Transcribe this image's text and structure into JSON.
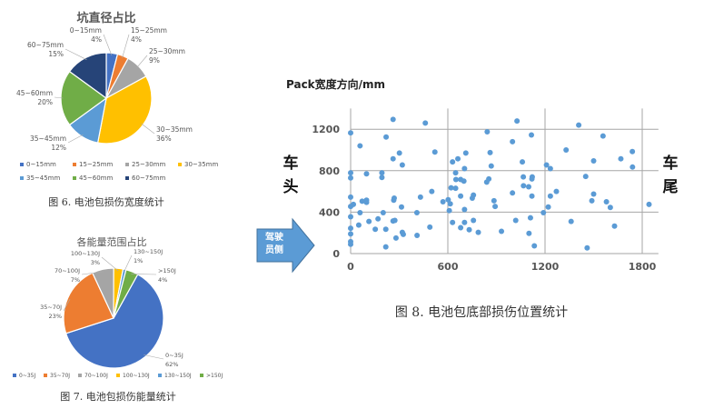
{
  "chart_data": [
    {
      "type": "pie",
      "title": "坑直径占比",
      "caption": "图 6. 电池包损伤宽度统计",
      "categories": [
        "0~15mm",
        "15~25mm",
        "25~30mm",
        "30~35mm",
        "35~45mm",
        "45~60mm",
        "60~75mm"
      ],
      "values": [
        4,
        4,
        9,
        36,
        12,
        20,
        15
      ],
      "value_labels": [
        "4%",
        "4%",
        "9%",
        "36%",
        "12%",
        "20%",
        "15%"
      ],
      "colors": [
        "#4472C4",
        "#ED7D31",
        "#A5A5A5",
        "#FFC000",
        "#5B9BD5",
        "#70AD47",
        "#264478"
      ],
      "legend": "bottom"
    },
    {
      "type": "pie",
      "title": "各能量范围占比",
      "caption": "图 7. 电池包损伤能量统计",
      "categories": [
        "0~35J",
        "35~70J",
        "70~100J",
        "100~130J",
        "130~150J",
        ">150J"
      ],
      "values": [
        62,
        23,
        7,
        3,
        1,
        4
      ],
      "value_labels": [
        "62%",
        "23%",
        "7%",
        "3%",
        "1%",
        "4%"
      ],
      "colors": [
        "#4472C4",
        "#ED7D31",
        "#A5A5A5",
        "#FFC000",
        "#5B9BD5",
        "#70AD47"
      ],
      "legend": "bottom"
    },
    {
      "type": "scatter",
      "ylabel": "Pack宽度方向/mm",
      "caption": "图 8. 电池包底部损伤位置统计",
      "left_label": "车头",
      "right_label": "车尾",
      "arrow_label": "驾驶员侧",
      "xlim": [
        0,
        1900
      ],
      "ylim": [
        0,
        1400
      ],
      "xticks": [
        0,
        600,
        1200,
        1800
      ],
      "yticks": [
        0,
        400,
        800,
        1200
      ],
      "grid": true,
      "color": "#5B9BD5",
      "points": [
        [
          0,
          1165
        ],
        [
          58,
          1040
        ],
        [
          0,
          780
        ],
        [
          0,
          730
        ],
        [
          98,
          770
        ],
        [
          193,
          780
        ],
        [
          193,
          735
        ],
        [
          0,
          545
        ],
        [
          0,
          455
        ],
        [
          17,
          475
        ],
        [
          58,
          395
        ],
        [
          71,
          505
        ],
        [
          98,
          515
        ],
        [
          98,
          495
        ],
        [
          0,
          355
        ],
        [
          0,
          245
        ],
        [
          0,
          190
        ],
        [
          0,
          115
        ],
        [
          0,
          90
        ],
        [
          50,
          275
        ],
        [
          113,
          310
        ],
        [
          169,
          335
        ],
        [
          152,
          235
        ],
        [
          201,
          395
        ],
        [
          217,
          235
        ],
        [
          217,
          65
        ],
        [
          219,
          1125
        ],
        [
          262,
          1295
        ],
        [
          262,
          915
        ],
        [
          301,
          970
        ],
        [
          319,
          855
        ],
        [
          266,
          515
        ],
        [
          269,
          535
        ],
        [
          314,
          450
        ],
        [
          262,
          315
        ],
        [
          273,
          320
        ],
        [
          280,
          150
        ],
        [
          319,
          205
        ],
        [
          325,
          185
        ],
        [
          409,
          395
        ],
        [
          410,
          175
        ],
        [
          431,
          545
        ],
        [
          461,
          1260
        ],
        [
          489,
          255
        ],
        [
          501,
          600
        ],
        [
          520,
          980
        ],
        [
          570,
          500
        ],
        [
          602,
          520
        ],
        [
          615,
          480
        ],
        [
          609,
          415
        ],
        [
          620,
          635
        ],
        [
          629,
          885
        ],
        [
          629,
          300
        ],
        [
          648,
          630
        ],
        [
          662,
          915
        ],
        [
          648,
          780
        ],
        [
          650,
          715
        ],
        [
          679,
          715
        ],
        [
          699,
          700
        ],
        [
          679,
          555
        ],
        [
          711,
          970
        ],
        [
          703,
          820
        ],
        [
          703,
          425
        ],
        [
          703,
          300
        ],
        [
          679,
          250
        ],
        [
          732,
          230
        ],
        [
          751,
          535
        ],
        [
          758,
          565
        ],
        [
          758,
          320
        ],
        [
          788,
          205
        ],
        [
          843,
          1175
        ],
        [
          861,
          975
        ],
        [
          853,
          720
        ],
        [
          840,
          690
        ],
        [
          868,
          845
        ],
        [
          885,
          510
        ],
        [
          892,
          455
        ],
        [
          931,
          215
        ],
        [
          999,
          585
        ],
        [
          999,
          1080
        ],
        [
          1019,
          320
        ],
        [
          1027,
          1280
        ],
        [
          1060,
          885
        ],
        [
          1066,
          740
        ],
        [
          1067,
          655
        ],
        [
          1099,
          645
        ],
        [
          1101,
          195
        ],
        [
          1110,
          345
        ],
        [
          1119,
          555
        ],
        [
          1116,
          1145
        ],
        [
          1121,
          740
        ],
        [
          1119,
          720
        ],
        [
          1134,
          75
        ],
        [
          1190,
          395
        ],
        [
          1209,
          855
        ],
        [
          1233,
          820
        ],
        [
          1220,
          450
        ],
        [
          1233,
          555
        ],
        [
          1270,
          600
        ],
        [
          1330,
          1000
        ],
        [
          1361,
          310
        ],
        [
          1408,
          1240
        ],
        [
          1451,
          745
        ],
        [
          1460,
          55
        ],
        [
          1500,
          895
        ],
        [
          1500,
          575
        ],
        [
          1489,
          510
        ],
        [
          1558,
          1135
        ],
        [
          1579,
          500
        ],
        [
          1603,
          445
        ],
        [
          1629,
          265
        ],
        [
          1668,
          915
        ],
        [
          1739,
          985
        ],
        [
          1740,
          835
        ],
        [
          1842,
          475
        ]
      ]
    }
  ]
}
